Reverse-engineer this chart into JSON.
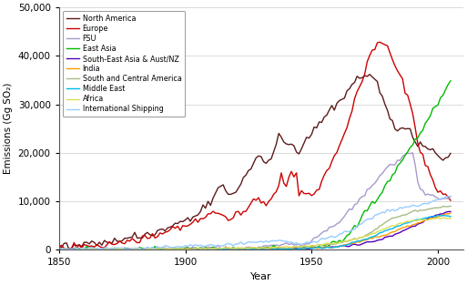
{
  "xlabel": "Year",
  "ylabel": "Emissions (Gg SO₂)",
  "xlim": [
    1850,
    2010
  ],
  "ylim": [
    0,
    50000
  ],
  "yticks": [
    0,
    10000,
    20000,
    30000,
    40000,
    50000
  ],
  "xticks": [
    1850,
    1900,
    1950,
    2000
  ],
  "background_color": "#ffffff",
  "regions": [
    "North America",
    "Europe",
    "FSU",
    "East Asia",
    "South-East Asia & Aust/NZ",
    "India",
    "South and Central America",
    "Middle East",
    "Africa",
    "International Shipping"
  ],
  "colors": [
    "#5C1A1A",
    "#CC0000",
    "#A899CC",
    "#00BB00",
    "#5500BB",
    "#FF9900",
    "#AABB88",
    "#00BBEE",
    "#DDDD55",
    "#99CCFF"
  ],
  "linewidths": [
    1.0,
    1.0,
    1.0,
    1.0,
    1.0,
    1.0,
    1.0,
    1.0,
    1.0,
    1.0
  ]
}
